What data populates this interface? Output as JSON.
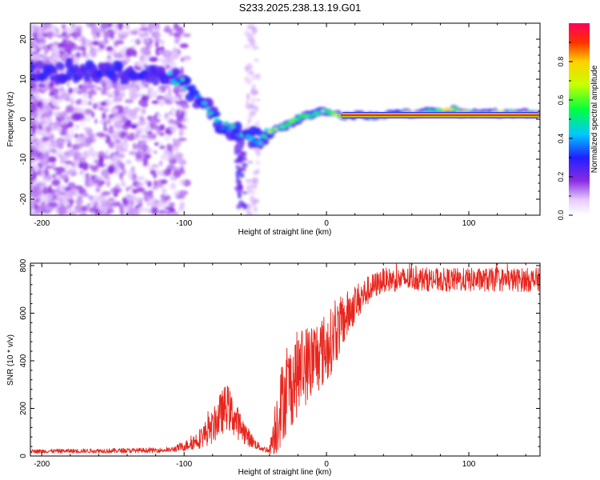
{
  "title": "S233.2025.238.13.19.G01",
  "colors": {
    "snr_line": "#e8261e",
    "fixed_tone": "#e02020",
    "axes": "#000000"
  },
  "chart_data": [
    {
      "type": "heatmap",
      "name": "spectrogram",
      "xlabel": "Height of straight line (km)",
      "ylabel": "Frequency (Hz)",
      "xlim": [
        -208,
        150
      ],
      "ylim": [
        -24,
        24
      ],
      "xticks": [
        -200,
        -100,
        0,
        100
      ],
      "xtick_labels": [
        "-200",
        "-100",
        "0",
        "100"
      ],
      "yticks": [
        -20,
        -10,
        0,
        10,
        20
      ],
      "ytick_labels": [
        "-20",
        "-10",
        "0",
        "10",
        "20"
      ],
      "colorbar": {
        "label": "Normalized spectral amplitude",
        "range": [
          0,
          1
        ],
        "ticks": [
          0.0,
          0.2,
          0.4,
          0.6,
          0.8
        ],
        "tick_labels": [
          "0.0",
          "0.2",
          "0.4",
          "0.6",
          "0.8"
        ]
      },
      "signal_track": [
        {
          "x": -208,
          "f": 12
        },
        {
          "x": -180,
          "f": 12
        },
        {
          "x": -160,
          "f": 12
        },
        {
          "x": -140,
          "f": 11
        },
        {
          "x": -120,
          "f": 11
        },
        {
          "x": -105,
          "f": 10
        },
        {
          "x": -100,
          "f": 9
        },
        {
          "x": -95,
          "f": 7
        },
        {
          "x": -90,
          "f": 5
        },
        {
          "x": -85,
          "f": 3
        },
        {
          "x": -80,
          "f": 1
        },
        {
          "x": -75,
          "f": -1
        },
        {
          "x": -70,
          "f": -2
        },
        {
          "x": -65,
          "f": -3
        },
        {
          "x": -60,
          "f": -4
        },
        {
          "x": -55,
          "f": -4
        },
        {
          "x": -50,
          "f": -5
        },
        {
          "x": -45,
          "f": -5
        },
        {
          "x": -40,
          "f": -3
        },
        {
          "x": -35,
          "f": -2
        },
        {
          "x": -30,
          "f": -2
        },
        {
          "x": -25,
          "f": -1
        },
        {
          "x": -20,
          "f": 0
        },
        {
          "x": -15,
          "f": 1
        },
        {
          "x": -10,
          "f": 1
        },
        {
          "x": -5,
          "f": 2
        },
        {
          "x": 0,
          "f": 2
        },
        {
          "x": 5,
          "f": 1
        },
        {
          "x": 10,
          "f": 1
        },
        {
          "x": 40,
          "f": 1
        },
        {
          "x": 60,
          "f": 1.5
        },
        {
          "x": 80,
          "f": 2
        },
        {
          "x": 90,
          "f": 2.5
        },
        {
          "x": 95,
          "f": 1.5
        },
        {
          "x": 105,
          "f": 1.5
        },
        {
          "x": 120,
          "f": 1.5
        },
        {
          "x": 150,
          "f": 1.5
        }
      ],
      "fixed_tone": {
        "x_start": 10,
        "x_end": 150,
        "f": 1
      }
    },
    {
      "type": "line",
      "name": "snr",
      "xlabel": "Height of straight line (km)",
      "ylabel": "SNR (10 * v/v)",
      "xlim": [
        -208,
        150
      ],
      "ylim": [
        0,
        810
      ],
      "xticks": [
        -200,
        -100,
        0,
        100
      ],
      "xtick_labels": [
        "-200",
        "-100",
        "0",
        "100"
      ],
      "yticks": [
        0,
        200,
        400,
        600,
        800
      ],
      "ytick_labels": [
        "0",
        "200",
        "400",
        "600",
        "800"
      ],
      "envelope": {
        "x": [
          -208,
          -150,
          -110,
          -100,
          -90,
          -80,
          -75,
          -70,
          -65,
          -60,
          -55,
          -50,
          -45,
          -40,
          -35,
          -30,
          -25,
          -20,
          -15,
          -10,
          -5,
          0,
          10,
          20,
          30,
          40,
          50,
          60,
          80,
          100,
          120,
          150
        ],
        "mid": [
          20,
          22,
          25,
          40,
          70,
          120,
          170,
          210,
          160,
          120,
          80,
          50,
          30,
          25,
          150,
          250,
          300,
          350,
          380,
          400,
          430,
          450,
          550,
          640,
          700,
          740,
          740,
          745,
          740,
          740,
          740,
          740
        ],
        "amp": [
          8,
          10,
          10,
          20,
          40,
          70,
          90,
          100,
          80,
          60,
          40,
          20,
          12,
          15,
          150,
          180,
          180,
          180,
          170,
          170,
          160,
          150,
          120,
          80,
          60,
          50,
          50,
          50,
          50,
          50,
          50,
          50
        ]
      }
    }
  ]
}
